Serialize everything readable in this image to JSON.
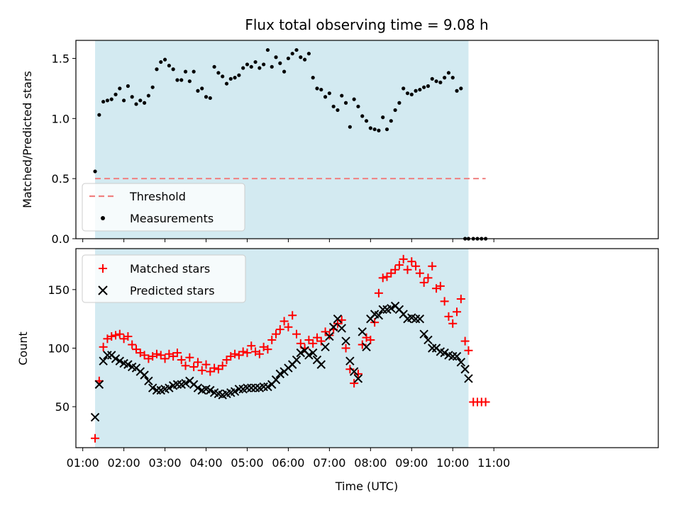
{
  "chart_data": {
    "title": "Flux total observing time = 9.08 h",
    "shaded_region": {
      "x_start": "01:18",
      "x_end": "10:23",
      "color": "#d3eaf1"
    },
    "top": {
      "type": "scatter",
      "ylabel": "Matched/Predicted stars",
      "ylim": [
        0,
        1.65
      ],
      "yticks": [
        "0.0",
        "0.5",
        "1.0",
        "1.5"
      ],
      "threshold": {
        "name": "Threshold",
        "value": 0.5,
        "x_range": [
          "01:18",
          "10:48"
        ],
        "color": "#f08080"
      },
      "legend": [
        "Threshold",
        "Measurements"
      ],
      "legend_position": "lower-left",
      "series": [
        {
          "name": "Measurements",
          "color": "#000000",
          "marker": "dot",
          "x": [
            "01:18",
            "01:24",
            "01:30",
            "01:36",
            "01:42",
            "01:48",
            "01:54",
            "02:00",
            "02:06",
            "02:12",
            "02:18",
            "02:24",
            "02:30",
            "02:36",
            "02:42",
            "02:48",
            "02:54",
            "03:00",
            "03:06",
            "03:12",
            "03:18",
            "03:24",
            "03:30",
            "03:36",
            "03:42",
            "03:48",
            "03:54",
            "04:00",
            "04:06",
            "04:12",
            "04:18",
            "04:24",
            "04:30",
            "04:36",
            "04:42",
            "04:48",
            "04:54",
            "05:00",
            "05:06",
            "05:12",
            "05:18",
            "05:24",
            "05:30",
            "05:36",
            "05:42",
            "05:48",
            "05:54",
            "06:00",
            "06:06",
            "06:12",
            "06:18",
            "06:24",
            "06:30",
            "06:36",
            "06:42",
            "06:48",
            "06:54",
            "07:00",
            "07:06",
            "07:12",
            "07:18",
            "07:24",
            "07:30",
            "07:36",
            "07:42",
            "07:48",
            "07:54",
            "08:00",
            "08:06",
            "08:12",
            "08:18",
            "08:24",
            "08:30",
            "08:36",
            "08:42",
            "08:48",
            "08:54",
            "09:00",
            "09:06",
            "09:12",
            "09:18",
            "09:24",
            "09:30",
            "09:36",
            "09:42",
            "09:48",
            "09:54",
            "10:00",
            "10:06",
            "10:12",
            "10:18",
            "10:23",
            "10:30",
            "10:36",
            "10:42",
            "10:48"
          ],
          "y": [
            0.56,
            1.03,
            1.14,
            1.15,
            1.16,
            1.2,
            1.25,
            1.15,
            1.27,
            1.18,
            1.12,
            1.15,
            1.13,
            1.19,
            1.26,
            1.41,
            1.47,
            1.49,
            1.44,
            1.41,
            1.32,
            1.32,
            1.39,
            1.31,
            1.39,
            1.23,
            1.25,
            1.18,
            1.17,
            1.43,
            1.38,
            1.35,
            1.29,
            1.33,
            1.34,
            1.36,
            1.42,
            1.45,
            1.43,
            1.47,
            1.42,
            1.45,
            1.57,
            1.43,
            1.51,
            1.46,
            1.39,
            1.5,
            1.54,
            1.57,
            1.51,
            1.49,
            1.54,
            1.34,
            1.25,
            1.24,
            1.18,
            1.21,
            1.1,
            1.07,
            1.19,
            1.13,
            0.93,
            1.16,
            1.1,
            1.02,
            0.98,
            0.92,
            0.91,
            0.9,
            1.01,
            0.91,
            0.98,
            1.07,
            1.13,
            1.25,
            1.21,
            1.2,
            1.23,
            1.24,
            1.26,
            1.27,
            1.33,
            1.31,
            1.3,
            1.34,
            1.38,
            1.34,
            1.23,
            1.25,
            0.0,
            0.0,
            0.0,
            0.0,
            0.0,
            0.0
          ]
        }
      ]
    },
    "bottom": {
      "type": "scatter",
      "ylabel": "Count",
      "xlabel": "Time (UTC)",
      "ylim": [
        15,
        185
      ],
      "yticks": [
        "50",
        "100",
        "150"
      ],
      "xticks": [
        "01:00",
        "02:00",
        "03:00",
        "04:00",
        "05:00",
        "06:00",
        "07:00",
        "08:00",
        "09:00",
        "10:00",
        "11:00"
      ],
      "xlim_minutes": [
        -10,
        840
      ],
      "legend": [
        "Matched stars",
        "Predicted stars"
      ],
      "legend_position": "upper-left",
      "series": [
        {
          "name": "Matched stars",
          "color": "#ff0000",
          "marker": "plus",
          "x": [
            "01:18",
            "01:24",
            "01:30",
            "01:36",
            "01:42",
            "01:48",
            "01:54",
            "02:00",
            "02:06",
            "02:12",
            "02:18",
            "02:24",
            "02:30",
            "02:36",
            "02:42",
            "02:48",
            "02:54",
            "03:00",
            "03:06",
            "03:12",
            "03:18",
            "03:24",
            "03:30",
            "03:36",
            "03:42",
            "03:48",
            "03:54",
            "04:00",
            "04:06",
            "04:12",
            "04:18",
            "04:24",
            "04:30",
            "04:36",
            "04:42",
            "04:48",
            "04:54",
            "05:00",
            "05:06",
            "05:12",
            "05:18",
            "05:24",
            "05:30",
            "05:36",
            "05:42",
            "05:48",
            "05:54",
            "06:00",
            "06:06",
            "06:12",
            "06:18",
            "06:24",
            "06:30",
            "06:36",
            "06:42",
            "06:48",
            "06:54",
            "07:00",
            "07:06",
            "07:12",
            "07:18",
            "07:24",
            "07:30",
            "07:36",
            "07:42",
            "07:48",
            "07:54",
            "08:00",
            "08:06",
            "08:12",
            "08:18",
            "08:24",
            "08:30",
            "08:36",
            "08:42",
            "08:48",
            "08:54",
            "09:00",
            "09:06",
            "09:12",
            "09:18",
            "09:24",
            "09:30",
            "09:36",
            "09:42",
            "09:48",
            "09:54",
            "10:00",
            "10:06",
            "10:12",
            "10:18",
            "10:23",
            "10:30",
            "10:36",
            "10:42",
            "10:48"
          ],
          "y": [
            23,
            72,
            101,
            108,
            110,
            111,
            112,
            108,
            110,
            103,
            99,
            96,
            94,
            91,
            93,
            95,
            94,
            91,
            95,
            93,
            96,
            90,
            85,
            92,
            84,
            88,
            81,
            86,
            80,
            83,
            82,
            85,
            90,
            93,
            95,
            94,
            97,
            96,
            102,
            97,
            95,
            101,
            99,
            107,
            112,
            116,
            123,
            118,
            128,
            112,
            104,
            100,
            107,
            104,
            109,
            106,
            114,
            111,
            116,
            121,
            124,
            100,
            82,
            70,
            78,
            103,
            109,
            107,
            122,
            147,
            160,
            161,
            164,
            167,
            171,
            176,
            167,
            174,
            170,
            164,
            156,
            160,
            170,
            151,
            153,
            140,
            127,
            121,
            131,
            142,
            106,
            98,
            54,
            54,
            54,
            54
          ]
        },
        {
          "name": "Predicted stars",
          "color": "#000000",
          "marker": "x",
          "x": [
            "01:18",
            "01:24",
            "01:30",
            "01:36",
            "01:42",
            "01:48",
            "01:54",
            "02:00",
            "02:06",
            "02:12",
            "02:18",
            "02:24",
            "02:30",
            "02:36",
            "02:42",
            "02:48",
            "02:54",
            "03:00",
            "03:06",
            "03:12",
            "03:18",
            "03:24",
            "03:30",
            "03:36",
            "03:42",
            "03:48",
            "03:54",
            "04:00",
            "04:06",
            "04:12",
            "04:18",
            "04:24",
            "04:30",
            "04:36",
            "04:42",
            "04:48",
            "04:54",
            "05:00",
            "05:06",
            "05:12",
            "05:18",
            "05:24",
            "05:30",
            "05:36",
            "05:42",
            "05:48",
            "05:54",
            "06:00",
            "06:06",
            "06:12",
            "06:18",
            "06:24",
            "06:30",
            "06:36",
            "06:42",
            "06:48",
            "06:54",
            "07:00",
            "07:06",
            "07:12",
            "07:18",
            "07:24",
            "07:30",
            "07:36",
            "07:42",
            "07:48",
            "07:54",
            "08:00",
            "08:06",
            "08:12",
            "08:18",
            "08:24",
            "08:30",
            "08:36",
            "08:42",
            "08:48",
            "08:54",
            "09:00",
            "09:06",
            "09:12",
            "09:18",
            "09:24",
            "09:30",
            "09:36",
            "09:42",
            "09:48",
            "09:54",
            "10:00",
            "10:06",
            "10:12",
            "10:18",
            "10:23"
          ],
          "y": [
            41,
            69,
            89,
            94,
            94,
            91,
            89,
            87,
            86,
            84,
            83,
            80,
            77,
            72,
            66,
            64,
            64,
            65,
            66,
            68,
            69,
            69,
            70,
            72,
            69,
            66,
            64,
            65,
            64,
            62,
            61,
            60,
            61,
            62,
            63,
            65,
            65,
            66,
            66,
            66,
            66,
            67,
            67,
            69,
            73,
            78,
            80,
            83,
            86,
            90,
            96,
            98,
            94,
            96,
            90,
            86,
            101,
            110,
            118,
            125,
            117,
            106,
            89,
            80,
            74,
            114,
            101,
            125,
            129,
            128,
            133,
            133,
            134,
            136,
            133,
            129,
            125,
            126,
            125,
            125,
            112,
            107,
            100,
            100,
            97,
            96,
            94,
            93,
            93,
            88,
            82,
            74
          ]
        }
      ]
    }
  }
}
